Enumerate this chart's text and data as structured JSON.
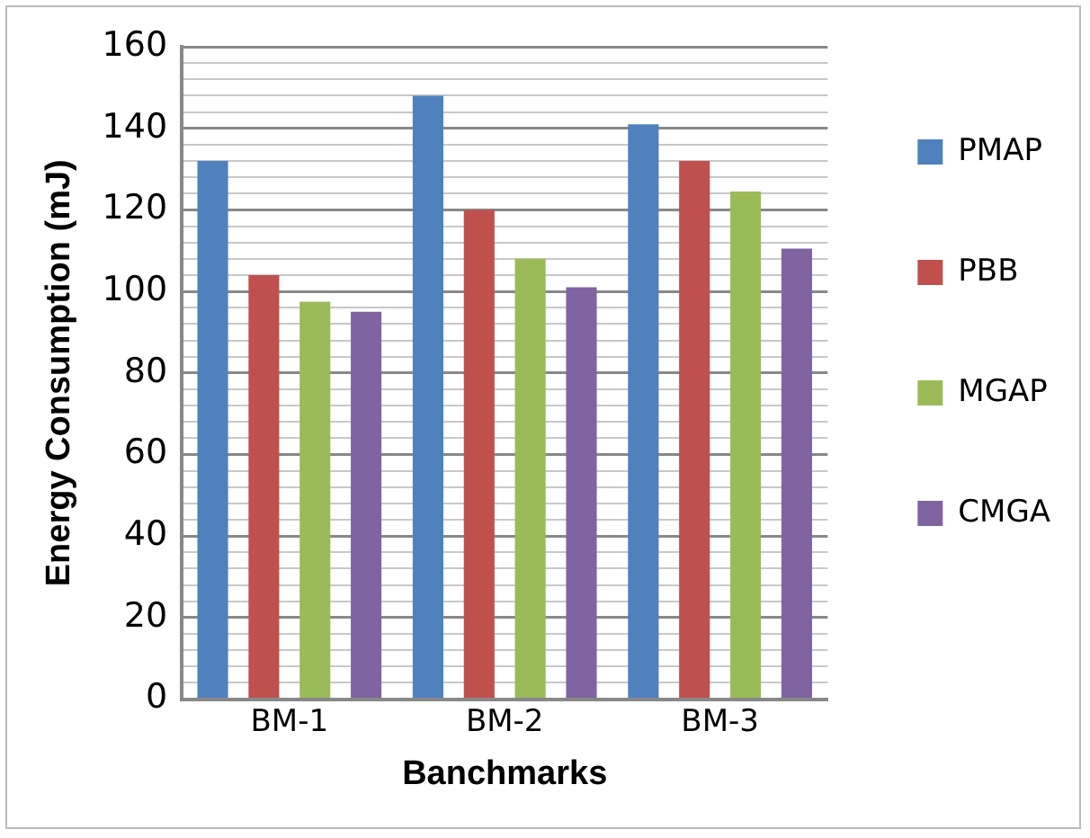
{
  "chart_data": {
    "type": "bar",
    "xlabel": "Banchmarks",
    "ylabel": "Energy Consumption (mJ)",
    "categories": [
      "BM-1",
      "BM-2",
      "BM-3"
    ],
    "series": [
      {
        "name": "PMAP",
        "color": "#4f81bd",
        "values": [
          132,
          148,
          141
        ]
      },
      {
        "name": "PBB",
        "color": "#c0504d",
        "values": [
          104,
          120,
          132
        ]
      },
      {
        "name": "MGAP",
        "color": "#9bbb59",
        "values": [
          97.5,
          108,
          124.5
        ]
      },
      {
        "name": "CMGA",
        "color": "#8064a2",
        "values": [
          95,
          101,
          110.5
        ]
      }
    ],
    "ylim": [
      0,
      160
    ],
    "yticks": [
      0,
      {
        "value": 4,
        "label": null
      },
      {
        "value": 8,
        "label": null
      },
      {
        "value": 12,
        "label": null
      },
      {
        "value": 16,
        "label": null
      },
      20,
      {
        "value": 24,
        "label": null
      },
      {
        "value": 28,
        "label": null
      },
      {
        "value": 32,
        "label": null
      },
      {
        "value": 36,
        "label": null
      },
      40,
      {
        "value": 44,
        "label": null
      },
      {
        "value": 48,
        "label": null
      },
      {
        "value": 52,
        "label": null
      },
      {
        "value": 56,
        "label": null
      },
      60,
      {
        "value": 64,
        "label": null
      },
      {
        "value": 68,
        "label": null
      },
      {
        "value": 72,
        "label": null
      },
      {
        "value": 76,
        "label": null
      },
      80,
      {
        "value": 84,
        "label": null
      },
      {
        "value": 88,
        "label": null
      },
      {
        "value": 92,
        "label": null
      },
      {
        "value": 96,
        "label": null
      },
      100,
      {
        "value": 104,
        "label": null
      },
      {
        "value": 108,
        "label": null
      },
      {
        "value": 112,
        "label": null
      },
      {
        "value": 116,
        "label": null
      },
      120,
      {
        "value": 124,
        "label": null
      },
      {
        "value": 128,
        "label": null
      },
      {
        "value": 132,
        "label": null
      },
      {
        "value": 136,
        "label": null
      },
      140,
      {
        "value": 144,
        "label": null
      },
      {
        "value": 148,
        "label": null
      },
      {
        "value": 152,
        "label": null
      },
      {
        "value": 156,
        "label": null
      },
      160
    ],
    "grid": "y",
    "legend": "right"
  }
}
